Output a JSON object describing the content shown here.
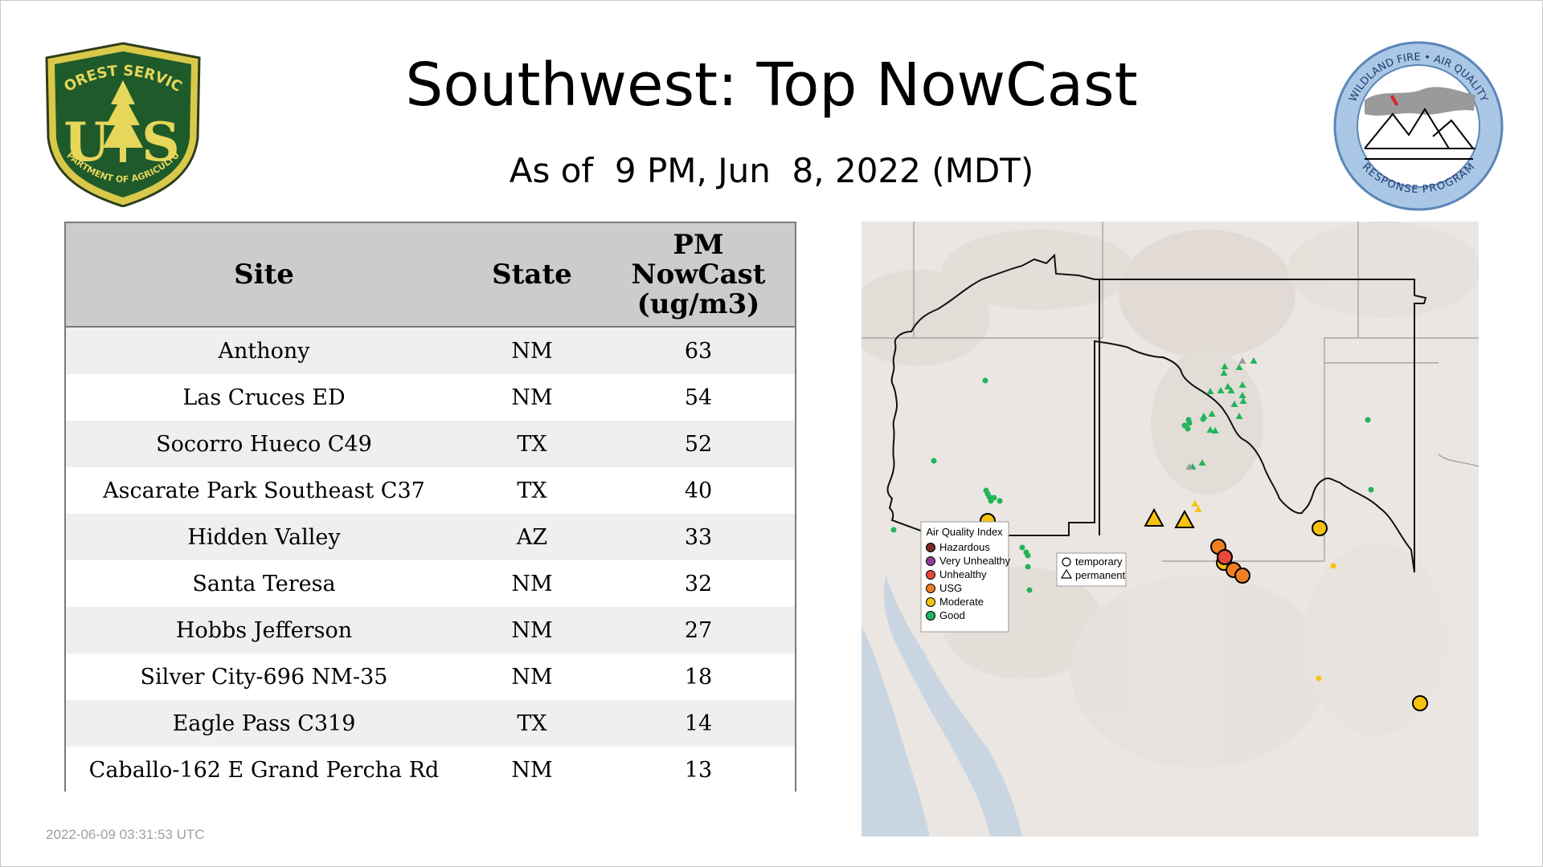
{
  "header": {
    "title": "Southwest: Top NowCast",
    "subtitle": "As of  9 PM, Jun  8, 2022 (MDT)"
  },
  "logos": {
    "usfs": {
      "top_text": "FOREST SERVICE",
      "letters": "US",
      "bottom_text": "DEPARTMENT OF AGRICULTURE"
    },
    "aq": {
      "top_text": "WILDLAND FIRE • AIR QUALITY",
      "bottom_text": "RESPONSE PROGRAM"
    }
  },
  "table": {
    "headers": {
      "site": "Site",
      "state": "State",
      "value_line1": "PM",
      "value_line2": "NowCast",
      "value_line3": "(ug/m3)"
    },
    "rows": [
      {
        "site": "Anthony",
        "state": "NM",
        "value": "63"
      },
      {
        "site": "Las Cruces ED",
        "state": "NM",
        "value": "54"
      },
      {
        "site": "Socorro Hueco C49",
        "state": "TX",
        "value": "52"
      },
      {
        "site": "Ascarate Park Southeast C37",
        "state": "TX",
        "value": "40"
      },
      {
        "site": "Hidden Valley",
        "state": "AZ",
        "value": "33"
      },
      {
        "site": "Santa Teresa",
        "state": "NM",
        "value": "32"
      },
      {
        "site": "Hobbs Jefferson",
        "state": "NM",
        "value": "27"
      },
      {
        "site": "Silver City-696 NM-35",
        "state": "NM",
        "value": "18"
      },
      {
        "site": "Eagle Pass C319",
        "state": "TX",
        "value": "14"
      },
      {
        "site": "Caballo-162 E Grand Percha Rd",
        "state": "NM",
        "value": "13"
      }
    ]
  },
  "map": {
    "legend_aqi": {
      "title": "Air Quality Index",
      "items": [
        {
          "label": "Hazardous",
          "color": "#7e2a24"
        },
        {
          "label": "Very Unhealthy",
          "color": "#8f3f97"
        },
        {
          "label": "Unhealthy",
          "color": "#e8473a"
        },
        {
          "label": "USG",
          "color": "#f07f23"
        },
        {
          "label": "Moderate",
          "color": "#f6c20f"
        },
        {
          "label": "Good",
          "color": "#22b45a"
        }
      ]
    },
    "legend_type": {
      "temporary": "temporary",
      "permanent": "permanent"
    }
  },
  "footer": {
    "timestamp": "2022-06-09 03:31:53 UTC"
  }
}
